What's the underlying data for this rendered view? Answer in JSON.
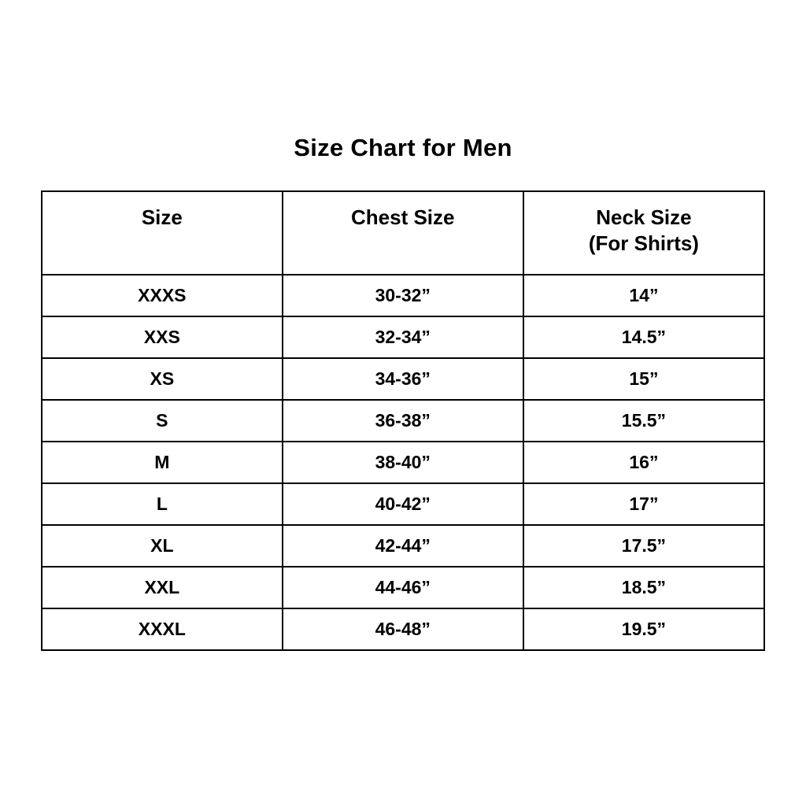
{
  "title": "Size Chart for Men",
  "header": {
    "col1": "Size",
    "col2": "Chest Size",
    "col3_line1": "Neck Size",
    "col3_line2": "(For Shirts)"
  },
  "colors": {
    "background": "#ffffff",
    "text": "#000000",
    "border": "#000000"
  },
  "chart_data": {
    "type": "table",
    "title": "Size Chart for Men",
    "columns": [
      "Size",
      "Chest Size",
      "Neck Size (For Shirts)"
    ],
    "rows": [
      [
        "XXXS",
        "30-32”",
        "14”"
      ],
      [
        "XXS",
        "32-34”",
        "14.5”"
      ],
      [
        "XS",
        "34-36”",
        "15”"
      ],
      [
        "S",
        "36-38”",
        "15.5”"
      ],
      [
        "M",
        "38-40”",
        "16”"
      ],
      [
        "L",
        "40-42”",
        "17”"
      ],
      [
        "XL",
        "42-44”",
        "17.5”"
      ],
      [
        "XXL",
        "44-46”",
        "18.5”"
      ],
      [
        "XXXL",
        "46-48”",
        "19.5”"
      ]
    ]
  }
}
